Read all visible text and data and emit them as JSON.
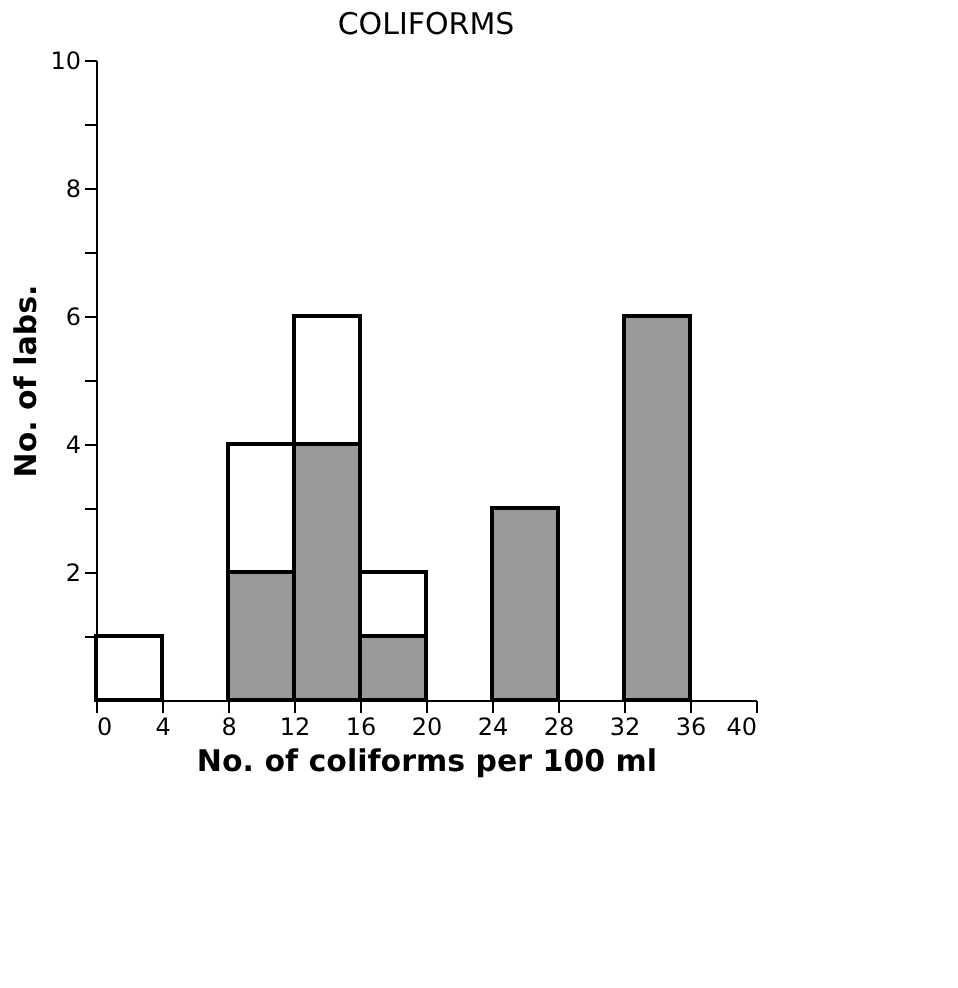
{
  "chart_data": {
    "type": "histogram",
    "title": "COLIFORMS",
    "xlabel": "No. of coliforms per 100 ml",
    "ylabel": "No. of labs.",
    "bins": [
      0,
      4,
      8,
      12,
      16,
      20,
      24,
      28,
      32,
      36,
      40
    ],
    "series": [
      {
        "color": "#ffffff",
        "values": [
          1,
          0,
          4,
          6,
          2,
          0,
          0,
          0,
          0,
          0
        ]
      },
      {
        "color": "#9a9a9a",
        "values": [
          0,
          0,
          2,
          4,
          1,
          0,
          3,
          0,
          6,
          0
        ]
      }
    ],
    "xlim": [
      0,
      40
    ],
    "xticks": [
      0,
      4,
      8,
      12,
      16,
      20,
      24,
      28,
      32,
      36,
      40
    ],
    "ylim": [
      0,
      10
    ],
    "yticks": [
      {
        "value": 1,
        "label": null
      },
      2,
      {
        "value": 3,
        "label": null
      },
      4,
      {
        "value": 5,
        "label": null
      },
      6,
      {
        "value": 7,
        "label": null
      },
      8,
      {
        "value": 9,
        "label": null
      },
      10
    ],
    "grid": false,
    "legend": false
  }
}
